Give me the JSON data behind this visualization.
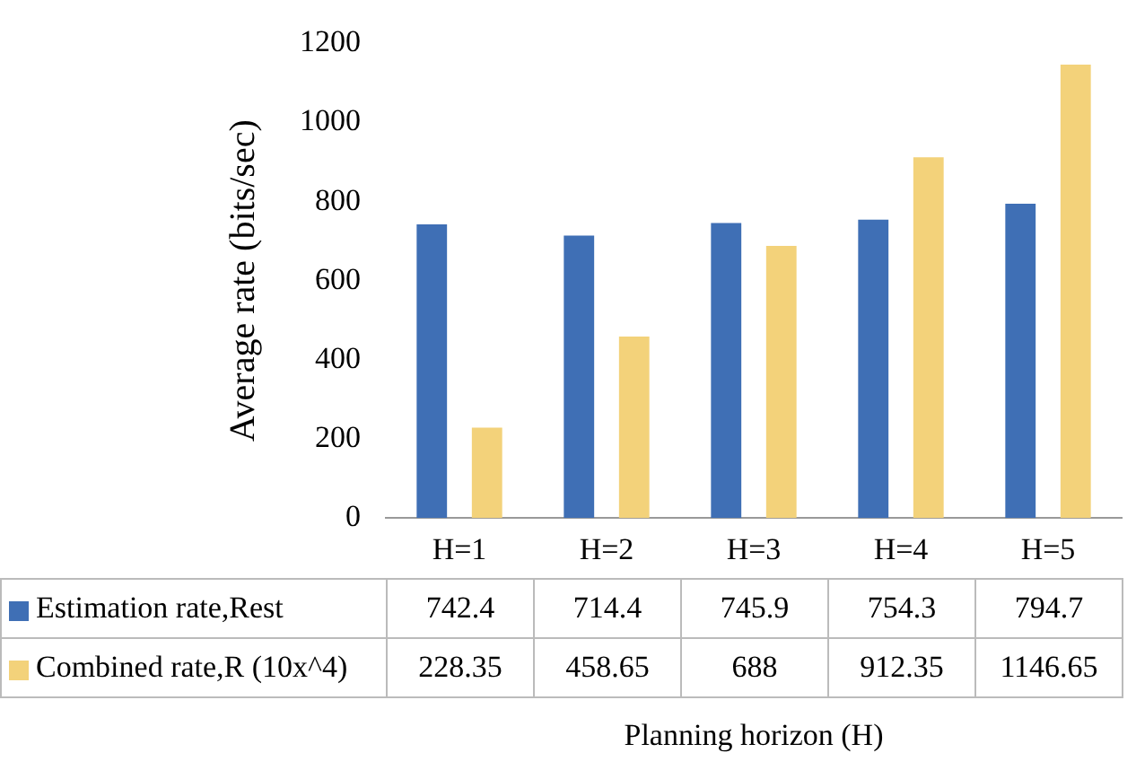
{
  "chart_data": {
    "type": "bar",
    "xlabel": "Planning horizon (H)",
    "ylabel": "Average rate (bits/sec)",
    "categories": [
      "H=1",
      "H=2",
      "H=3",
      "H=4",
      "H=5"
    ],
    "series": [
      {
        "name": "Estimation rate,Rest",
        "color": "#3f6fb5",
        "values": [
          742.4,
          714.4,
          745.9,
          754.3,
          794.7
        ]
      },
      {
        "name": "Combined rate,R (10x^4)",
        "color": "#f3d27a",
        "values": [
          228.35,
          458.65,
          688,
          912.35,
          1146.65
        ]
      }
    ],
    "ylim": [
      0,
      1200
    ],
    "yticks": [
      0,
      200,
      400,
      600,
      800,
      1000,
      1200
    ],
    "grid": false,
    "legend": "bottom",
    "data_labels": true
  }
}
